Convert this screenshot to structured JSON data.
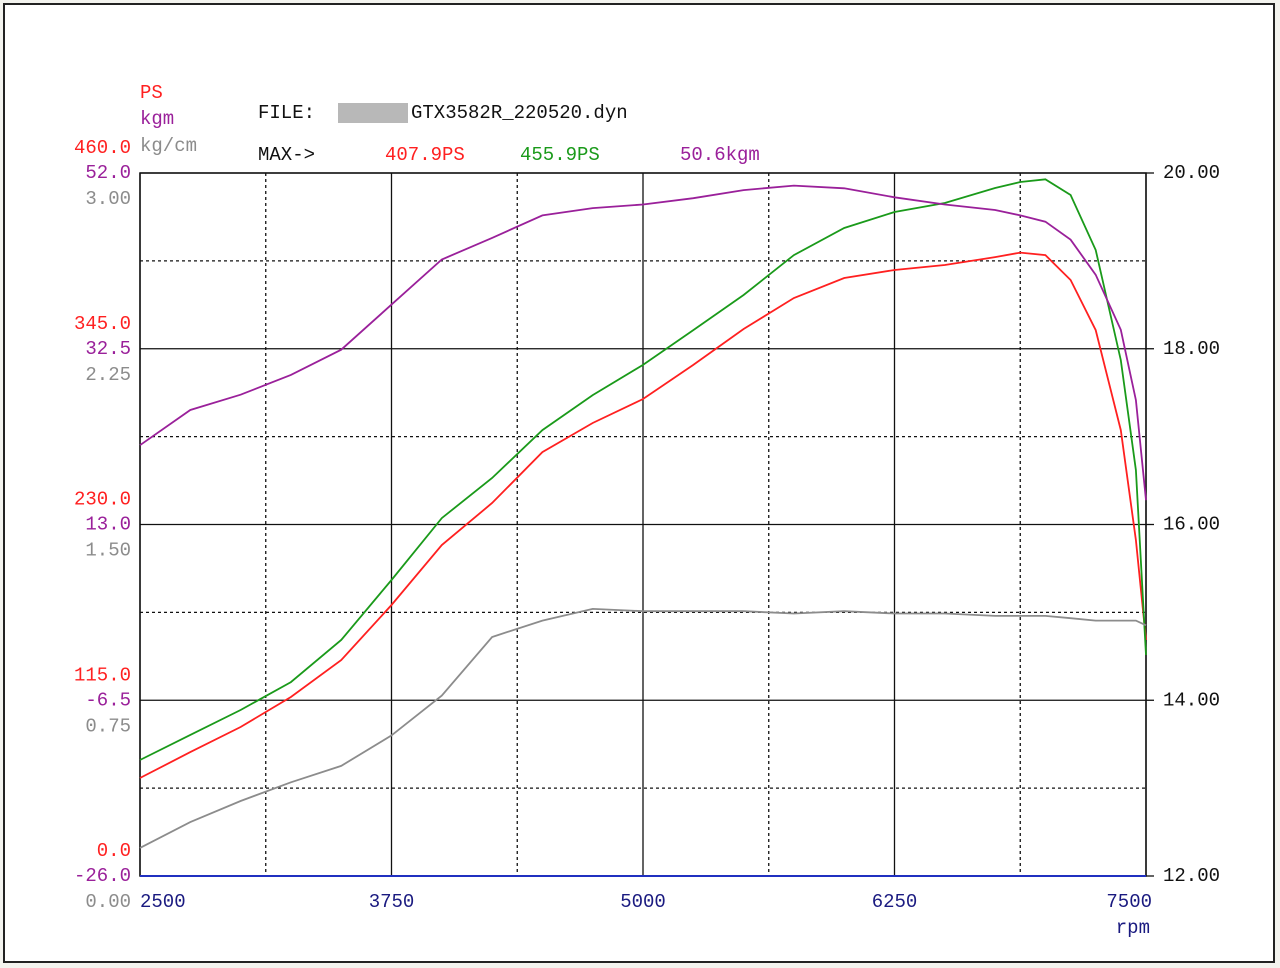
{
  "chart_data": {
    "type": "line",
    "header": {
      "file_label": "FILE:",
      "file_name": "GTX3582R_220520.dyn",
      "max_label": "MAX->"
    },
    "axis_labels": {
      "y": "PS",
      "y3": "kgm",
      "y4": "kg/cm",
      "x": "rpm"
    },
    "x": [
      2500,
      2750,
      3000,
      3250,
      3500,
      3750,
      4000,
      4250,
      4500,
      4750,
      5000,
      5250,
      5500,
      5750,
      6000,
      6250,
      6500,
      6750,
      6875,
      7000,
      7125,
      7250,
      7375,
      7450,
      7500
    ],
    "xlim": [
      2500,
      7500
    ],
    "xticks": [
      2500,
      3750,
      5000,
      6250,
      7500
    ],
    "xminorticks": [
      3125,
      4375,
      5625,
      6875
    ],
    "ylim": [
      0,
      460
    ],
    "yticks": [
      {
        "value": 0,
        "label": "0.0"
      },
      {
        "value": 115,
        "label": "115.0"
      },
      {
        "value": 230,
        "label": "230.0"
      },
      {
        "value": 345,
        "label": "345.0"
      },
      {
        "value": 460,
        "label": "460.0"
      }
    ],
    "yminorticks": [
      57.5,
      172.5,
      287.5,
      402.5
    ],
    "y3lim": [
      -26,
      52
    ],
    "y3ticks": [
      {
        "value": -26,
        "label": "-26.0"
      },
      -6.5,
      {
        "value": 13,
        "label": "13.0"
      },
      32.5,
      {
        "value": 52,
        "label": "52.0"
      }
    ],
    "y4lim": [
      0,
      3
    ],
    "y4ticks": [
      {
        "value": 0,
        "label": "0.00"
      },
      0.75,
      {
        "value": 1.5,
        "label": "1.50"
      },
      2.25,
      {
        "value": 3,
        "label": "3.00"
      }
    ],
    "y2lim": [
      12,
      20
    ],
    "y2ticks": [
      {
        "value": 12,
        "label": "12.00"
      },
      {
        "value": 14,
        "label": "14.00"
      },
      {
        "value": 16,
        "label": "16.00"
      },
      {
        "value": 18,
        "label": "18.00"
      },
      {
        "value": 20,
        "label": "20.00"
      }
    ],
    "grid": true,
    "series": [
      {
        "name": "407.9PS",
        "color": "#ff2020",
        "axis": "y",
        "values": [
          64.1,
          81.1,
          97.5,
          117.1,
          141.3,
          177.3,
          216.6,
          244.1,
          277.4,
          296.4,
          312.1,
          334.4,
          357.9,
          378.2,
          391.3,
          396.5,
          399.8,
          405.0,
          407.9,
          406.3,
          390.0,
          357.2,
          291.8,
          219.8,
          154.4
        ]
      },
      {
        "name": "455.9PS",
        "color": "#1a9a1a",
        "axis": "y",
        "values": [
          75.9,
          92.3,
          108.6,
          126.9,
          154.4,
          193.7,
          234.2,
          260.4,
          291.8,
          314.7,
          334.4,
          357.2,
          380.2,
          406.3,
          424.0,
          434.5,
          440.4,
          450.2,
          454.1,
          455.9,
          445.6,
          409.6,
          337.6,
          265.6,
          144.6
        ]
      },
      {
        "name": "50.6kgm",
        "color": "#9a209a",
        "axis": "y3",
        "values": [
          21.8,
          25.7,
          27.4,
          29.6,
          32.4,
          37.4,
          42.4,
          44.8,
          47.3,
          48.1,
          48.5,
          49.2,
          50.1,
          50.6,
          50.3,
          49.3,
          48.5,
          47.9,
          47.3,
          46.6,
          44.6,
          40.7,
          34.6,
          26.8,
          15.7
        ]
      },
      {
        "color": "#8c8c8c",
        "axis": "y4",
        "values": [
          0.12,
          0.23,
          0.32,
          0.4,
          0.47,
          0.6,
          0.77,
          1.02,
          1.09,
          1.14,
          1.13,
          1.13,
          1.13,
          1.12,
          1.13,
          1.12,
          1.12,
          1.11,
          1.11,
          1.11,
          1.1,
          1.09,
          1.09,
          1.09,
          1.07
        ]
      }
    ]
  }
}
